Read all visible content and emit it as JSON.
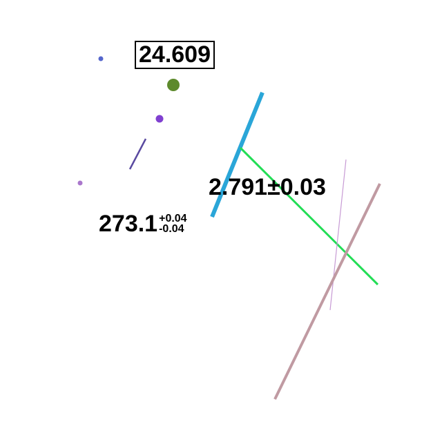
{
  "labels": {
    "boxed_value": "24.609",
    "plus_minus_value": "2.791±0.03",
    "asym_main": "273.1",
    "asym_upper": "+0.04",
    "asym_lower": "-0.04"
  },
  "colors": {
    "blue_line": "#2aa6d8",
    "green_line": "#22dd55",
    "pink_line": "#c09aa2",
    "thin_violet_line": "#c79ad4",
    "dark_violet_line": "#5a4aa0",
    "green_dot": "#5d8a2c",
    "purple_dot": "#8040d0",
    "small_blue_dot": "#5566cc",
    "small_violet_dot": "#aa77cc"
  }
}
